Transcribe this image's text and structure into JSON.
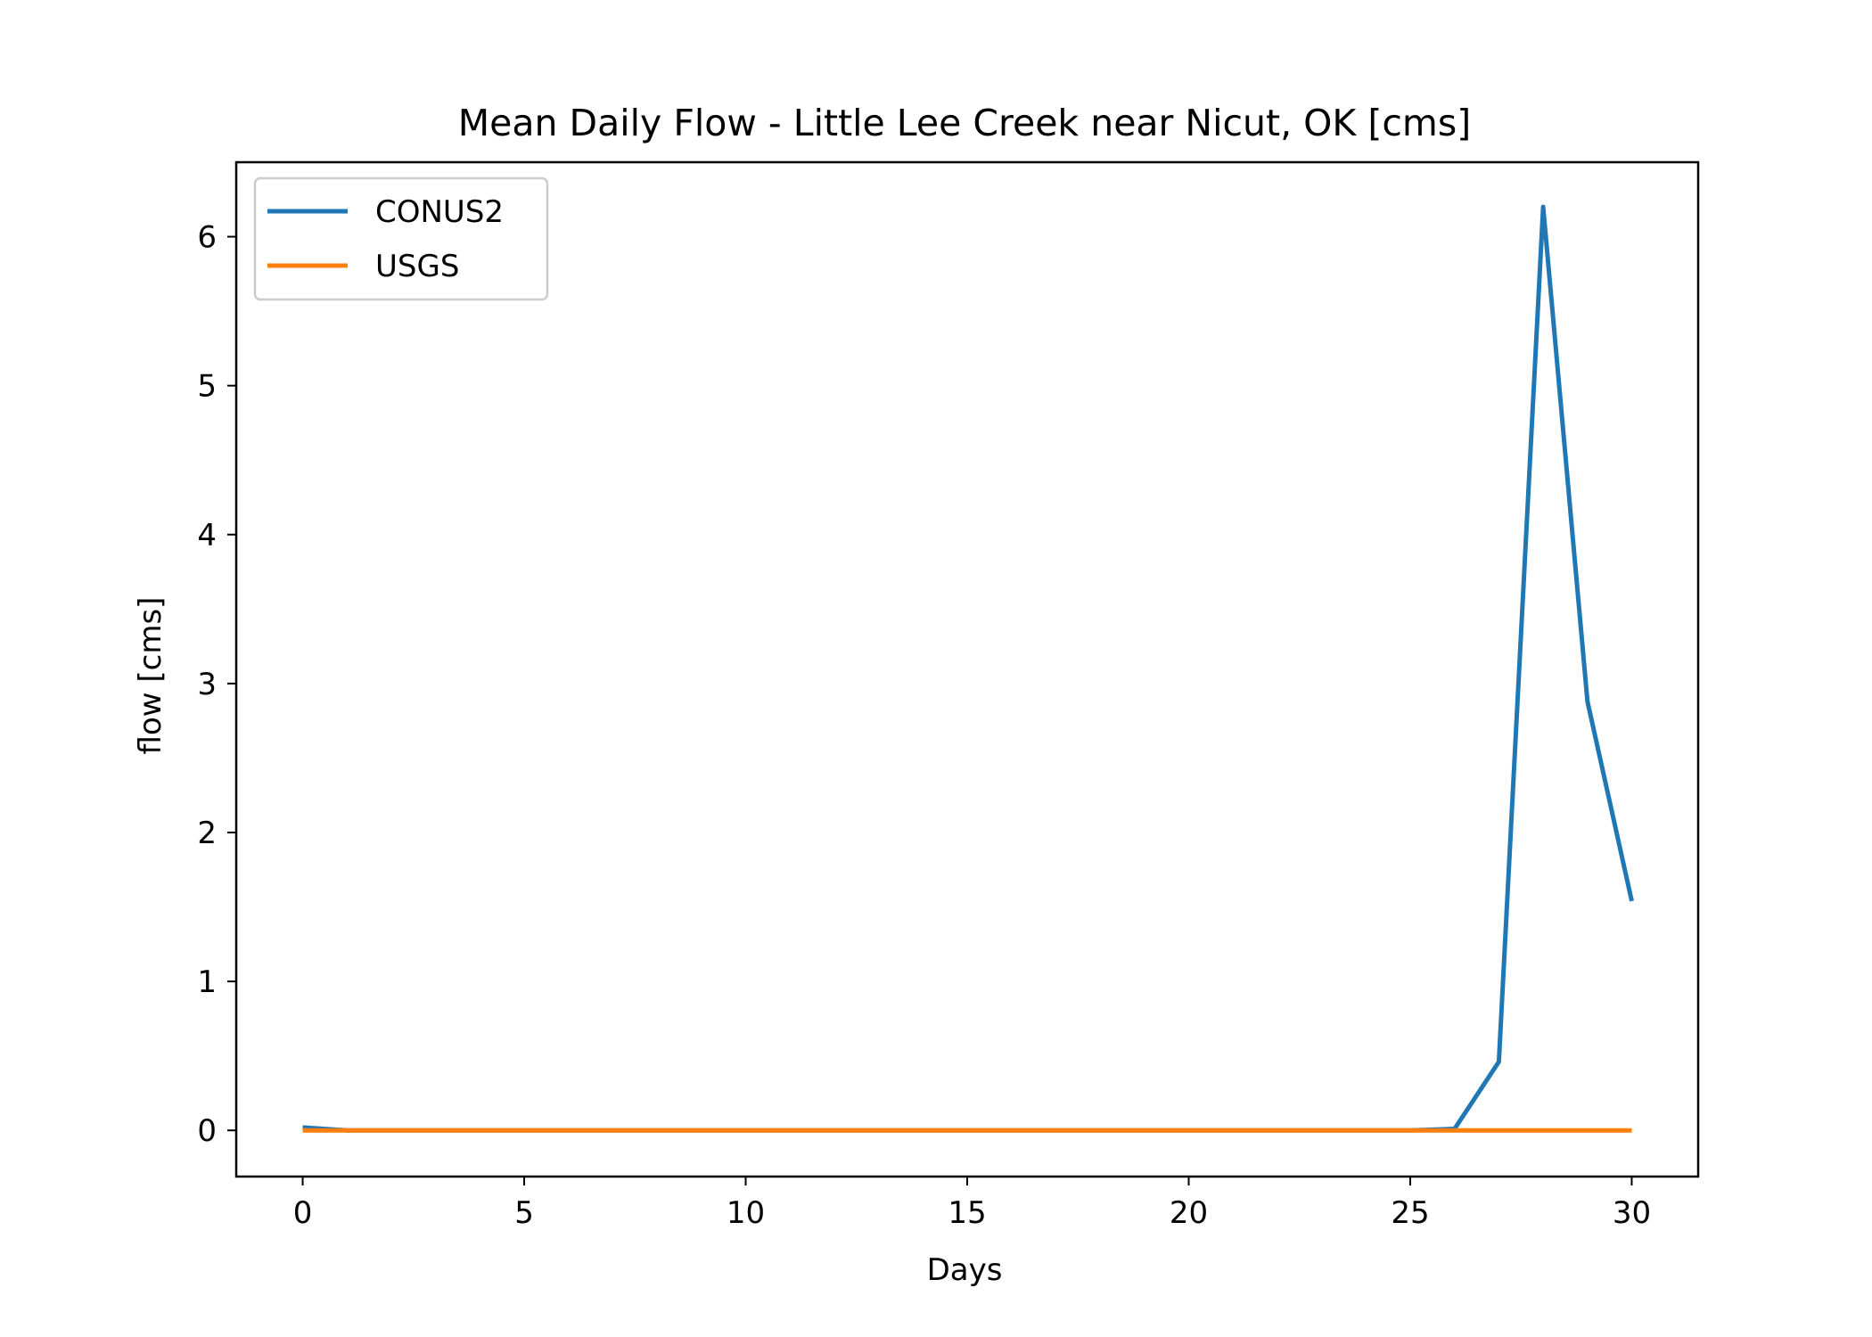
{
  "chart_data": {
    "type": "line",
    "title": "Mean Daily Flow - Little Lee Creek near Nicut, OK [cms]",
    "xlabel": "Days",
    "ylabel": "flow [cms]",
    "xlim": [
      -1.5,
      31.5
    ],
    "ylim": [
      -0.31,
      6.5
    ],
    "xticks": [
      0,
      5,
      10,
      15,
      20,
      25,
      30
    ],
    "xtick_labels": [
      "0",
      "5",
      "10",
      "15",
      "20",
      "25",
      "30"
    ],
    "yticks": [
      0,
      1,
      2,
      3,
      4,
      5,
      6
    ],
    "ytick_labels": [
      "0",
      "1",
      "2",
      "3",
      "4",
      "5",
      "6"
    ],
    "grid": false,
    "legend_position": "upper-left",
    "x": [
      0,
      1,
      2,
      3,
      4,
      5,
      6,
      7,
      8,
      9,
      10,
      11,
      12,
      13,
      14,
      15,
      16,
      17,
      18,
      19,
      20,
      21,
      22,
      23,
      24,
      25,
      26,
      27,
      28,
      29,
      30
    ],
    "series": [
      {
        "name": "CONUS2",
        "color": "#1f77b4",
        "values": [
          0.02,
          0.0,
          0.0,
          0.0,
          0.0,
          0.0,
          0.0,
          0.0,
          0.0,
          0.0,
          0.0,
          0.0,
          0.0,
          0.0,
          0.0,
          0.0,
          0.0,
          0.0,
          0.0,
          0.0,
          0.0,
          0.0,
          0.0,
          0.0,
          0.0,
          0.0,
          0.01,
          0.46,
          6.2,
          2.88,
          1.54
        ]
      },
      {
        "name": "USGS",
        "color": "#ff7f0e",
        "values": [
          0.0,
          0.0,
          0.0,
          0.0,
          0.0,
          0.0,
          0.0,
          0.0,
          0.0,
          0.0,
          0.0,
          0.0,
          0.0,
          0.0,
          0.0,
          0.0,
          0.0,
          0.0,
          0.0,
          0.0,
          0.0,
          0.0,
          0.0,
          0.0,
          0.0,
          0.0,
          0.0,
          0.0,
          0.0,
          0.0,
          0.0
        ]
      }
    ]
  }
}
